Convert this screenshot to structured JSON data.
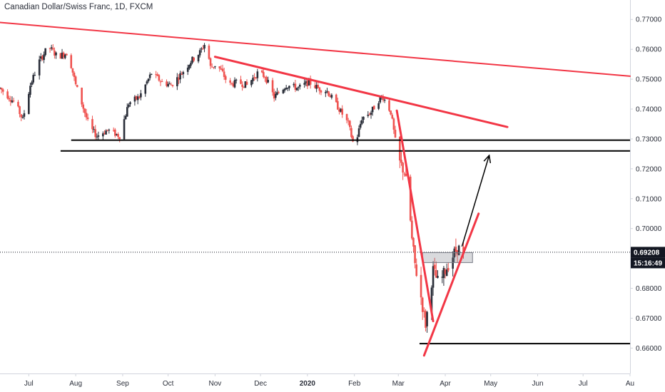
{
  "header": {
    "title": "Canadian Dollar/Swiss Franc, 1D, FXCM"
  },
  "price_tags": {
    "last_price": "0.69208",
    "countdown": "15:16:49"
  },
  "colors": {
    "up_candle": "#2a2e39",
    "down_candle": "#ef5350",
    "trendline": "#f23645",
    "support": "#000000",
    "axis_text": "#2a2e39",
    "tag_background": "#131722"
  },
  "chart_data": {
    "type": "candlestick",
    "title": "Canadian Dollar/Swiss Franc, 1D, FXCM",
    "symbol": "CADCHF",
    "interval": "1D",
    "x_ticks": [
      {
        "label": "Jul",
        "date": "2019-07-01"
      },
      {
        "label": "Aug",
        "date": "2019-08-01"
      },
      {
        "label": "Sep",
        "date": "2019-09-01"
      },
      {
        "label": "Oct",
        "date": "2019-10-01"
      },
      {
        "label": "Nov",
        "date": "2019-11-01"
      },
      {
        "label": "Dec",
        "date": "2019-12-01"
      },
      {
        "label": "2020",
        "date": "2020-01-01",
        "bold": true
      },
      {
        "label": "Feb",
        "date": "2020-02-01"
      },
      {
        "label": "Mar",
        "date": "2020-03-01"
      },
      {
        "label": "Apr",
        "date": "2020-04-01"
      },
      {
        "label": "May",
        "date": "2020-05-01"
      },
      {
        "label": "Jun",
        "date": "2020-06-01"
      },
      {
        "label": "Jul",
        "date": "2020-07-01"
      },
      {
        "label": "Au",
        "date": "2020-08-01"
      }
    ],
    "y_ticks": [
      "0.77000",
      "0.76000",
      "0.75000",
      "0.74000",
      "0.73000",
      "0.72000",
      "0.71000",
      "0.70000",
      "0.69000",
      "0.68000",
      "0.67000",
      "0.66000"
    ],
    "ylim": [
      0.6515,
      0.7765
    ],
    "xlim": [
      "2019-06-12",
      "2020-08-01"
    ],
    "last_price": 0.69208,
    "price_path": [
      [
        "2019-06-12",
        0.747
      ],
      [
        "2019-06-22",
        0.742
      ],
      [
        "2019-06-27",
        0.7365
      ],
      [
        "2019-07-02",
        0.748
      ],
      [
        "2019-07-08",
        0.756
      ],
      [
        "2019-07-14",
        0.761
      ],
      [
        "2019-07-20",
        0.7575
      ],
      [
        "2019-07-27",
        0.759
      ],
      [
        "2019-08-01",
        0.748
      ],
      [
        "2019-08-05",
        0.742
      ],
      [
        "2019-08-10",
        0.734
      ],
      [
        "2019-08-15",
        0.731
      ],
      [
        "2019-08-22",
        0.733
      ],
      [
        "2019-08-30",
        0.731
      ],
      [
        "2019-09-05",
        0.742
      ],
      [
        "2019-09-12",
        0.744
      ],
      [
        "2019-09-20",
        0.752
      ],
      [
        "2019-09-27",
        0.749
      ],
      [
        "2019-10-03",
        0.748
      ],
      [
        "2019-10-10",
        0.752
      ],
      [
        "2019-10-16",
        0.756
      ],
      [
        "2019-10-22",
        0.759
      ],
      [
        "2019-10-26",
        0.7625
      ],
      [
        "2019-10-29",
        0.754
      ],
      [
        "2019-11-02",
        0.755
      ],
      [
        "2019-11-06",
        0.752
      ],
      [
        "2019-11-10",
        0.748
      ],
      [
        "2019-11-16",
        0.749
      ],
      [
        "2019-11-22",
        0.748
      ],
      [
        "2019-11-29",
        0.752
      ],
      [
        "2019-12-04",
        0.751
      ],
      [
        "2019-12-10",
        0.744
      ],
      [
        "2019-12-18",
        0.748
      ],
      [
        "2019-12-26",
        0.747
      ],
      [
        "2020-01-02",
        0.749
      ],
      [
        "2020-01-08",
        0.747
      ],
      [
        "2020-01-14",
        0.746
      ],
      [
        "2020-01-22",
        0.74
      ],
      [
        "2020-01-28",
        0.735
      ],
      [
        "2020-02-01",
        0.727
      ],
      [
        "2020-02-06",
        0.737
      ],
      [
        "2020-02-12",
        0.739
      ],
      [
        "2020-02-17",
        0.743
      ],
      [
        "2020-02-20",
        0.744
      ],
      [
        "2020-02-25",
        0.739
      ],
      [
        "2020-03-01",
        0.723
      ],
      [
        "2020-03-05",
        0.719
      ],
      [
        "2020-03-08",
        0.709
      ],
      [
        "2020-03-10",
        0.696
      ],
      [
        "2020-03-12",
        0.688
      ],
      [
        "2020-03-16",
        0.677
      ],
      [
        "2020-03-19",
        0.668
      ],
      [
        "2020-03-24",
        0.686
      ],
      [
        "2020-03-28",
        0.681
      ],
      [
        "2020-04-01",
        0.686
      ],
      [
        "2020-04-05",
        0.69
      ],
      [
        "2020-04-09",
        0.6935
      ],
      [
        "2020-04-13",
        0.6921
      ]
    ],
    "annotations": {
      "trendlines": [
        {
          "name": "long-term-resistance",
          "from": [
            "2019-06-12",
            0.769
          ],
          "to": [
            "2020-08-01",
            0.751
          ]
        },
        {
          "name": "short-term-resistance",
          "from": [
            "2019-11-01",
            0.7575
          ],
          "to": [
            "2020-05-12",
            0.734
          ]
        },
        {
          "name": "crash-line",
          "from": [
            "2020-02-29",
            0.7395
          ],
          "to": [
            "2020-03-24",
            0.669
          ]
        },
        {
          "name": "rising-support",
          "from": [
            "2020-03-18",
            0.6575
          ],
          "to": [
            "2020-04-23",
            0.705
          ]
        }
      ],
      "horizontal_lines": [
        {
          "name": "support-upper",
          "from_date": "2019-07-29",
          "to_date": "2020-08-01",
          "price": 0.7296
        },
        {
          "name": "support-lower",
          "from_date": "2019-07-22",
          "to_date": "2020-08-01",
          "price": 0.726
        },
        {
          "name": "march-low",
          "from_date": "2020-03-15",
          "to_date": "2020-08-01",
          "price": 0.6615
        }
      ],
      "target_arrow": {
        "from": [
          "2020-04-12",
          0.694
        ],
        "to": [
          "2020-04-30",
          0.7245
        ]
      },
      "consolidation_box": {
        "from_date": "2020-03-17",
        "to_date": "2020-04-19",
        "top": 0.691,
        "bottom": 0.689
      }
    }
  }
}
